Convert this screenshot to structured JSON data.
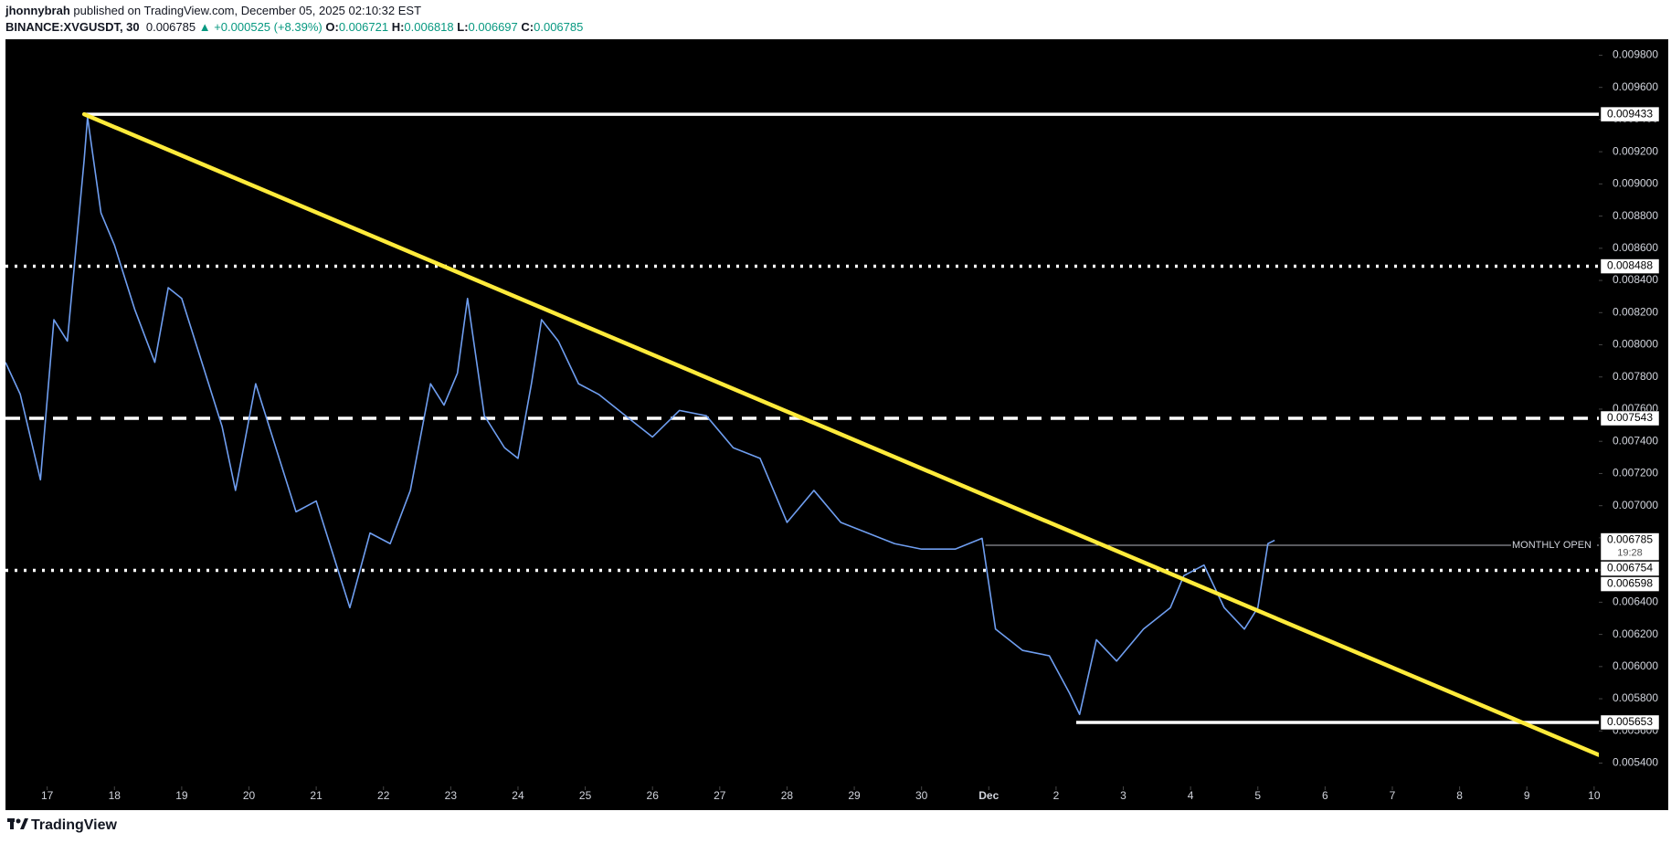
{
  "header": {
    "publisher_name": "jhonnybrah",
    "publisher_rest": "published on TradingView.com, December 05, 2025 02:10:32 EST",
    "symbol": "BINANCE:XVGUSDT, 30",
    "last": "0.006785",
    "change": "▲ +0.000525 (+8.39%)",
    "ohlc": [
      {
        "key": "O:",
        "value": "0.006721"
      },
      {
        "key": "H:",
        "value": "0.006818"
      },
      {
        "key": "L:",
        "value": "0.006697"
      },
      {
        "key": "C:",
        "value": "0.006785"
      }
    ]
  },
  "chart_data": {
    "type": "line",
    "color": "#6f9ef0",
    "x": [
      -0.62,
      -0.4,
      -0.1,
      0.1,
      0.3,
      0.55,
      0.6,
      0.8,
      1.0,
      1.3,
      1.6,
      1.8,
      2.0,
      2.3,
      2.6,
      2.8,
      3.1,
      3.4,
      3.7,
      4.0,
      4.3,
      4.5,
      4.8,
      5.1,
      5.4,
      5.7,
      5.9,
      6.1,
      6.25,
      6.5,
      6.8,
      7.0,
      7.2,
      7.35,
      7.6,
      7.9,
      8.2,
      8.6,
      9.0,
      9.4,
      9.8,
      10.2,
      10.6,
      11.0,
      11.4,
      11.8,
      12.2,
      12.6,
      13.0,
      13.5,
      13.9,
      14.1,
      14.5,
      14.9,
      15.2,
      15.35,
      15.6,
      15.9,
      16.3,
      16.7,
      16.9,
      17.2,
      17.5,
      17.8,
      18.0,
      18.15,
      18.25
    ],
    "values": [
      0.007891,
      0.007692,
      0.007161,
      0.008156,
      0.008023,
      0.00915,
      0.009415,
      0.008819,
      0.00862,
      0.008222,
      0.007891,
      0.008355,
      0.008288,
      0.007891,
      0.007493,
      0.007095,
      0.007758,
      0.00736,
      0.006962,
      0.007029,
      0.006631,
      0.006366,
      0.00683,
      0.006764,
      0.007095,
      0.007758,
      0.007625,
      0.007824,
      0.008288,
      0.007559,
      0.00736,
      0.007294,
      0.007758,
      0.008156,
      0.008023,
      0.007758,
      0.007692,
      0.007559,
      0.007427,
      0.007592,
      0.007559,
      0.00736,
      0.007294,
      0.006896,
      0.007095,
      0.006896,
      0.00683,
      0.006764,
      0.00673,
      0.00673,
      0.006797,
      0.006233,
      0.006101,
      0.006067,
      0.005835,
      0.005703,
      0.006167,
      0.006034,
      0.006233,
      0.006366,
      0.006565,
      0.006631,
      0.006366,
      0.006233,
      0.006366,
      0.006764,
      0.006785
    ],
    "xlim": [
      -0.62,
      23.07
    ],
    "ylim": [
      0.005261,
      0.009899
    ],
    "xticks": [
      {
        "value": 0,
        "label": "17"
      },
      {
        "value": 1,
        "label": "18"
      },
      {
        "value": 2,
        "label": "19"
      },
      {
        "value": 3,
        "label": "20"
      },
      {
        "value": 4,
        "label": "21"
      },
      {
        "value": 5,
        "label": "22"
      },
      {
        "value": 6,
        "label": "23"
      },
      {
        "value": 7,
        "label": "24"
      },
      {
        "value": 8,
        "label": "25"
      },
      {
        "value": 9,
        "label": "26"
      },
      {
        "value": 10,
        "label": "27"
      },
      {
        "value": 11,
        "label": "28"
      },
      {
        "value": 12,
        "label": "29"
      },
      {
        "value": 13,
        "label": "30"
      },
      {
        "value": 14,
        "label": "Dec"
      },
      {
        "value": 15,
        "label": "2"
      },
      {
        "value": 16,
        "label": "3"
      },
      {
        "value": 17,
        "label": "4"
      },
      {
        "value": 18,
        "label": "5"
      },
      {
        "value": 19,
        "label": "6"
      },
      {
        "value": 20,
        "label": "7"
      },
      {
        "value": 21,
        "label": "8"
      },
      {
        "value": 22,
        "label": "9"
      },
      {
        "value": 23,
        "label": "10"
      }
    ],
    "yticks": [
      {
        "value": 0.0054,
        "label": "0.005400"
      },
      {
        "value": 0.0056,
        "label": "0.005600"
      },
      {
        "value": 0.0058,
        "label": "0.005800"
      },
      {
        "value": 0.006,
        "label": "0.006000"
      },
      {
        "value": 0.0062,
        "label": "0.006200"
      },
      {
        "value": 0.0064,
        "label": "0.006400"
      },
      {
        "value": 0.0066,
        "label": "0.006600"
      },
      {
        "value": 0.0068,
        "label": "0.006800"
      },
      {
        "value": 0.007,
        "label": "0.007000"
      },
      {
        "value": 0.0072,
        "label": "0.007200"
      },
      {
        "value": 0.0074,
        "label": "0.007400"
      },
      {
        "value": 0.0076,
        "label": "0.007600"
      },
      {
        "value": 0.0078,
        "label": "0.007800"
      },
      {
        "value": 0.008,
        "label": "0.008000"
      },
      {
        "value": 0.0082,
        "label": "0.008200"
      },
      {
        "value": 0.0084,
        "label": "0.008400"
      },
      {
        "value": 0.0086,
        "label": "0.008600"
      },
      {
        "value": 0.0088,
        "label": "0.008800"
      },
      {
        "value": 0.009,
        "label": "0.009000"
      },
      {
        "value": 0.0092,
        "label": "0.009200"
      },
      {
        "value": 0.0094,
        "label": "0.009400"
      },
      {
        "value": 0.0096,
        "label": "0.009600"
      },
      {
        "value": 0.0098,
        "label": "0.009800"
      }
    ],
    "trendline": {
      "color": "#ffeb3b",
      "x": [
        0.55,
        23.07
      ],
      "values": [
        0.009433,
        0.005451
      ]
    },
    "levels": [
      {
        "value": 0.009433,
        "label": "0.009433",
        "style": "solid",
        "x0": 0.55
      },
      {
        "value": 0.008488,
        "label": "0.008488",
        "style": "dotted",
        "x0": -0.62
      },
      {
        "value": 0.007543,
        "label": "0.007543",
        "style": "dashed",
        "x0": -0.62
      },
      {
        "value": 0.006754,
        "label": "0.006754",
        "style": "thin",
        "x0": 13.95,
        "text": "MONTHLY OPEN"
      },
      {
        "value": 0.006598,
        "label": "0.006598",
        "style": "dotted",
        "x0": -0.62
      },
      {
        "value": 0.005653,
        "label": "0.005653",
        "style": "solid",
        "x0": 15.3
      }
    ],
    "current": {
      "value": 0.006785,
      "label": "0.006785",
      "timer": "19:28"
    }
  },
  "footer": {
    "brand": "TradingView"
  }
}
